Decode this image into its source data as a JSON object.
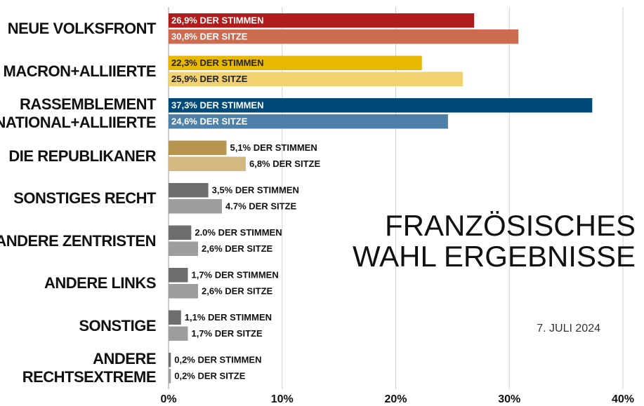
{
  "chart_data": {
    "type": "hbar",
    "title": "FRANZÖSISCHES\nWAHL ERGEBNISSE",
    "subtitle": "7. JULI 2024",
    "categories": [
      "NEUE VOLKSFRONT",
      "MACRON+ALLIIERTE",
      "RASSEMBLEMENT\nNATIONAL+ALLIIERTE",
      "DIE REPUBLIKANER",
      "SONSTIGES RECHT",
      "ANDERE ZENTRISTEN",
      "ANDERE LINKS",
      "SONSTIGE",
      "ANDERE\nRECHTSEXTREME"
    ],
    "series": [
      {
        "colors": [
          "#b01c1c",
          "#e8b800",
          "#004a7a",
          "#b8954e",
          "#6e6e6e",
          "#6e6e6e",
          "#6e6e6e",
          "#6e6e6e",
          "#6e6e6e"
        ],
        "values": [
          26.9,
          22.3,
          37.3,
          5.1,
          3.5,
          2.0,
          1.7,
          1.1,
          0.2
        ],
        "value_labels": [
          "26,9% DER STIMMEN",
          "22,3% DER STIMMEN",
          "37,3% DER STIMMEN",
          "5,1% DER STIMMEN",
          "3,5% DER STIMMEN",
          "2.0% DER STIMMEN",
          "1,7% DER STIMMEN",
          "1,1% DER STIMMEN",
          "0,2% DER STIMMEN"
        ]
      },
      {
        "colors": [
          "#cd6b50",
          "#f2d270",
          "#4d80a8",
          "#d4b882",
          "#9e9e9e",
          "#9e9e9e",
          "#9e9e9e",
          "#9e9e9e",
          "#9e9e9e"
        ],
        "values": [
          30.8,
          25.9,
          24.6,
          6.8,
          4.7,
          2.6,
          2.6,
          1.7,
          0.2
        ],
        "value_labels": [
          "30,8% DER SITZE",
          "25,9% DER SITZE",
          "24,6% DER SITZE",
          "6,8% DER SITZE",
          "4.7% DER SITZE",
          "2,6% DER SITZE",
          "2,6% DER SITZE",
          "1,7% DER SITZE",
          "0,2% DER SITZE"
        ]
      }
    ],
    "xlim": [
      0,
      40
    ],
    "xticks": [
      {
        "value": 0,
        "label": "0%"
      },
      {
        "value": 10,
        "label": "10%"
      },
      {
        "value": 20,
        "label": "20%"
      },
      {
        "value": 30,
        "label": "30%"
      },
      {
        "value": 40,
        "label": "40%"
      }
    ],
    "grid": true
  }
}
